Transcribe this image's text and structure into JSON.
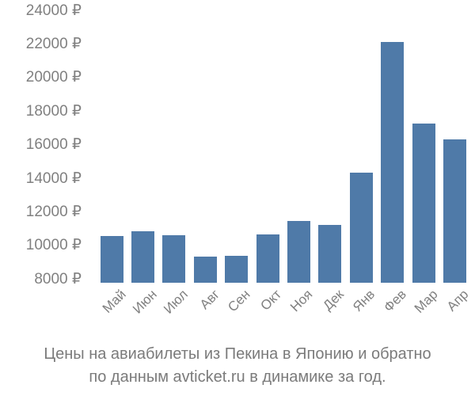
{
  "chart_data": {
    "type": "bar",
    "title": "",
    "xlabel": "",
    "ylabel": "",
    "categories": [
      "Май",
      "Июн",
      "Июл",
      "Авг",
      "Сен",
      "Окт",
      "Ноя",
      "Дек",
      "Янв",
      "Фев",
      "Мар",
      "Апр"
    ],
    "values": [
      10600,
      10850,
      10650,
      9350,
      9400,
      10700,
      11500,
      11250,
      14350,
      22150,
      17300,
      16350
    ],
    "y_ticks": [
      8000,
      10000,
      12000,
      14000,
      16000,
      18000,
      20000,
      22000,
      24000
    ],
    "y_tick_labels": [
      "8000 ₽",
      "10000 ₽",
      "12000 ₽",
      "14000 ₽",
      "16000 ₽",
      "18000 ₽",
      "20000 ₽",
      "22000 ₽",
      "24000 ₽"
    ],
    "currency": "₽",
    "ylim": [
      7800,
      24400
    ],
    "grid": false,
    "legend": false,
    "bar_color": "#4f7aa8",
    "axis_text_color": "#808080"
  },
  "caption": {
    "line1": "Цены на авиабилеты из Пекина в Японию и обратно",
    "line2": "по данным avticket.ru в динамике за год.",
    "color": "#7b7b7b"
  }
}
